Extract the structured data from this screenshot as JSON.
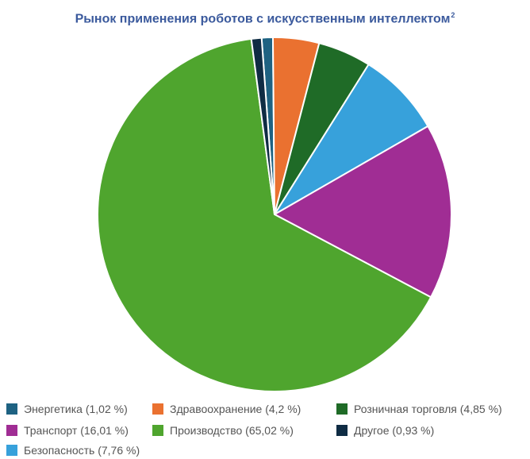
{
  "title": "Рынок применения роботов с искусственным интеллектом",
  "title_footnote": "2",
  "chart_data": {
    "type": "pie",
    "title": "Рынок применения роботов с искусственным интеллектом",
    "start_angle_deg": -4.2,
    "direction": "clockwise",
    "slices": [
      {
        "key": "energy",
        "label": "Энергетика (1,02 %)",
        "value": 1.02,
        "color": "#1e6282"
      },
      {
        "key": "health",
        "label": "Здравоохранение (4,2 %)",
        "value": 4.2,
        "color": "#ea7130"
      },
      {
        "key": "retail",
        "label": "Розничная торговля (4,85 %)",
        "value": 4.85,
        "color": "#1f6b27"
      },
      {
        "key": "security",
        "label": "Безопасность (7,76 %)",
        "value": 7.76,
        "color": "#37a1db"
      },
      {
        "key": "transport",
        "label": "Транспорт (16,01 %)",
        "value": 16.01,
        "color": "#a02d94"
      },
      {
        "key": "production",
        "label": "Производство (65,02 %)",
        "value": 65.02,
        "color": "#4fa52e"
      },
      {
        "key": "other",
        "label": "Другое (0,93 %)",
        "value": 0.93,
        "color": "#0f2c44"
      }
    ],
    "legend_placement": "bottom"
  }
}
